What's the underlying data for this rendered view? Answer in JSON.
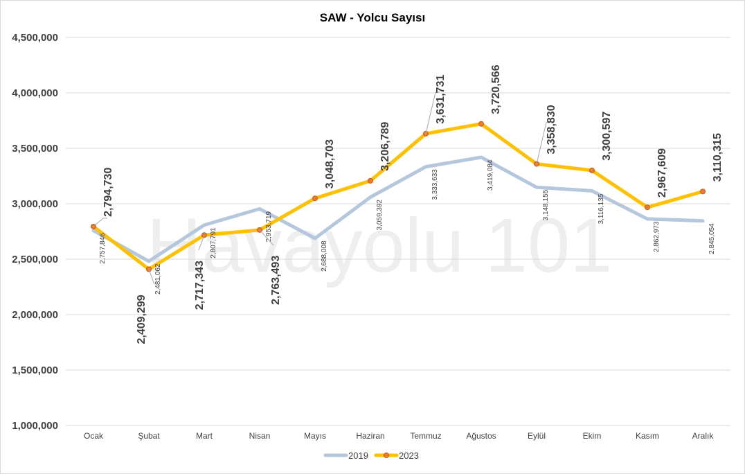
{
  "chart_data": {
    "type": "line",
    "title": "SAW - Yolcu Sayısı",
    "watermark": "Havayolu 101",
    "categories": [
      "Ocak",
      "Şubat",
      "Mart",
      "Nisan",
      "Mayıs",
      "Haziran",
      "Temmuz",
      "Ağustos",
      "Eylül",
      "Ekim",
      "Kasım",
      "Aralık"
    ],
    "ylim": [
      1000000,
      4500000
    ],
    "yticks": [
      1000000,
      1500000,
      2000000,
      2500000,
      3000000,
      3500000,
      4000000,
      4500000
    ],
    "ytick_labels": [
      "1,000,000",
      "1,500,000",
      "2,000,000",
      "2,500,000",
      "3,000,000",
      "3,500,000",
      "4,000,000",
      "4,500,000"
    ],
    "grid": true,
    "legend_position": "bottom",
    "series": [
      {
        "name": "2019",
        "color": "#b4c7dc",
        "values": [
          2757846,
          2481062,
          2807791,
          2953719,
          2688008,
          3059392,
          3333633,
          3419084,
          3148155,
          3116135,
          2862973,
          2845054
        ],
        "labels": [
          "2,757,846",
          "2,481,062",
          "2,807,791",
          "2,953,719",
          "2,688,008",
          "3,059,392",
          "3,333,633",
          "3,419,084",
          "3,148,155",
          "3,116,135",
          "2,862,973",
          "2,845,054"
        ]
      },
      {
        "name": "2023",
        "color": "#ffc000",
        "marker_color": "#ed7d31",
        "values": [
          2794730,
          2409299,
          2717343,
          2763493,
          3048703,
          3206789,
          3631731,
          3720566,
          3358830,
          3300597,
          2967609,
          3110315
        ],
        "labels": [
          "2,794,730",
          "2,409,299",
          "2,717,343",
          "2,763,493",
          "3,048,703",
          "3,206,789",
          "3,631,731",
          "3,720,566",
          "3,358,830",
          "3,300,597",
          "2,967,609",
          "3,110,315"
        ]
      }
    ]
  }
}
